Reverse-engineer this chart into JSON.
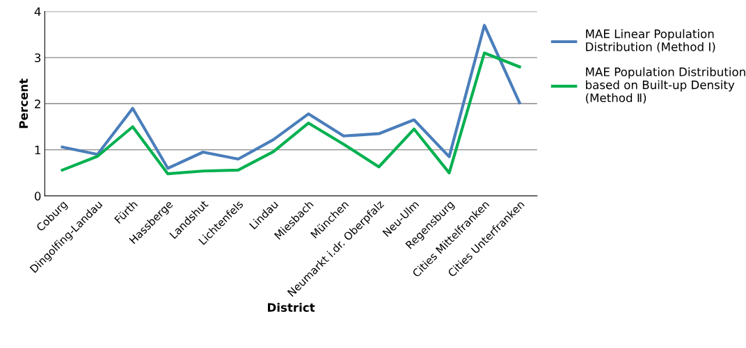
{
  "chart_data": {
    "type": "line",
    "xlabel": "District",
    "ylabel": "Percent",
    "categories": [
      "Coburg",
      "Dingolfing-Landau",
      "Fürth",
      "Hassberge",
      "Landshut",
      "Lichtenfels",
      "Lindau",
      "Miesbach",
      "München",
      "Neumarkt i.dr. Oberpfalz",
      "Neu-Ulm",
      "Regensburg",
      "Cities Mittelfranken",
      "Cities Unterfranken"
    ],
    "series": [
      {
        "name": "MAE Linear Population\nDistribution (Method Ⅰ)",
        "color": "#4a7ebb",
        "values": [
          1.06,
          0.9,
          1.9,
          0.6,
          0.95,
          0.8,
          1.22,
          1.78,
          1.3,
          1.35,
          1.65,
          0.85,
          3.7,
          2.02
        ]
      },
      {
        "name": "MAE Population Distribution\nbased on Built-up Density\n(Method Ⅱ)",
        "color": "#00b050",
        "values": [
          0.56,
          0.86,
          1.5,
          0.48,
          0.54,
          0.56,
          0.96,
          1.58,
          1.12,
          0.63,
          1.45,
          0.5,
          3.1,
          2.8
        ]
      }
    ],
    "ylim": [
      0,
      4
    ],
    "yticks": [
      0,
      1,
      2,
      3,
      4
    ],
    "grid": "y",
    "legend": "right",
    "marker": "none",
    "line_style": "solid"
  }
}
